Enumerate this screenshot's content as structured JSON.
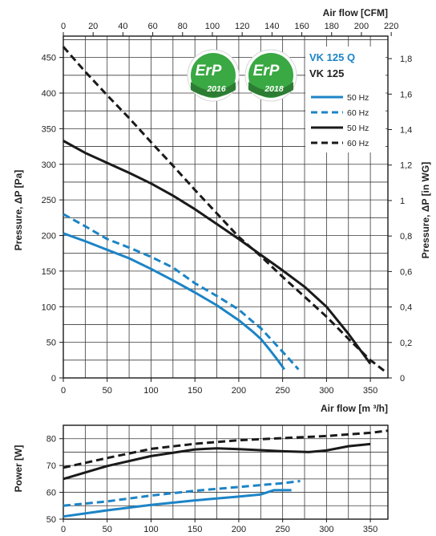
{
  "chart_data": [
    {
      "type": "line",
      "title": "",
      "xlabel": "Air flow [m ³/h]",
      "ylabel": "Pressure, ΔP [Pa]",
      "top_axis_label": "Air flow [CFM]",
      "right_axis_label": "Pressure, ΔP [in WG]",
      "xlim": [
        0,
        370
      ],
      "ylim": [
        0,
        480
      ],
      "x_ticks": [
        0,
        50,
        100,
        150,
        200,
        250,
        300,
        350
      ],
      "y_ticks": [
        0,
        50,
        100,
        150,
        200,
        250,
        300,
        350,
        400,
        450
      ],
      "top_x_ticks": [
        0,
        20,
        40,
        60,
        80,
        100,
        120,
        140,
        160,
        180,
        200,
        220
      ],
      "right_y_ticks": [
        "0",
        "0,2",
        "0,4",
        "0,6",
        "0,8",
        "1",
        "1,2",
        "1,4",
        "1,6",
        "1,8"
      ],
      "grid": true,
      "legend_position": "top-right",
      "legend": {
        "groups": [
          {
            "title": "VK 125 Q",
            "color": "#1c84c6",
            "entries": [
              {
                "label": "50 Hz",
                "dash": "solid"
              },
              {
                "label": "60 Hz",
                "dash": "dashed"
              }
            ]
          },
          {
            "title": "VK 125",
            "color": "#1a1a1a",
            "entries": [
              {
                "label": "50 Hz",
                "dash": "solid"
              },
              {
                "label": "60 Hz",
                "dash": "dashed"
              }
            ]
          }
        ]
      },
      "badges": [
        {
          "text": "ErP",
          "year": "2016"
        },
        {
          "text": "ErP",
          "year": "2018"
        }
      ],
      "series": [
        {
          "name": "VK 125 Q 50 Hz",
          "color": "#1c84c6",
          "dash": "solid",
          "x": [
            0,
            25,
            50,
            75,
            100,
            125,
            150,
            175,
            200,
            215,
            225,
            235,
            245,
            252
          ],
          "y": [
            203,
            192,
            180,
            168,
            153,
            137,
            120,
            102,
            81,
            66,
            55,
            40,
            24,
            12
          ]
        },
        {
          "name": "VK 125 Q 60 Hz",
          "color": "#1c84c6",
          "dash": "dashed",
          "x": [
            0,
            25,
            50,
            75,
            100,
            125,
            150,
            175,
            200,
            215,
            225,
            240,
            255,
            268
          ],
          "y": [
            230,
            213,
            195,
            183,
            170,
            155,
            133,
            115,
            96,
            80,
            70,
            50,
            30,
            12
          ]
        },
        {
          "name": "VK 125 50 Hz",
          "color": "#1a1a1a",
          "dash": "solid",
          "x": [
            0,
            25,
            50,
            75,
            100,
            125,
            150,
            175,
            200,
            225,
            250,
            275,
            300,
            325,
            350
          ],
          "y": [
            333,
            316,
            302,
            288,
            273,
            256,
            237,
            216,
            195,
            173,
            151,
            128,
            100,
            62,
            20
          ]
        },
        {
          "name": "VK 125 60 Hz",
          "color": "#1a1a1a",
          "dash": "dashed",
          "x": [
            0,
            25,
            50,
            75,
            100,
            125,
            150,
            175,
            200,
            225,
            250,
            275,
            300,
            325,
            350,
            368
          ],
          "y": [
            465,
            430,
            397,
            365,
            331,
            298,
            264,
            231,
            198,
            171,
            142,
            114,
            86,
            55,
            25,
            8
          ]
        }
      ]
    },
    {
      "type": "line",
      "title": "",
      "xlabel": "",
      "ylabel": "Power [W]",
      "xlim": [
        0,
        370
      ],
      "ylim": [
        50,
        85
      ],
      "x_ticks": [
        0,
        50,
        100,
        150,
        200,
        250,
        300,
        350
      ],
      "y_ticks": [
        50,
        60,
        70,
        80
      ],
      "grid": true,
      "series": [
        {
          "name": "VK 125 Q 50 Hz",
          "color": "#1c84c6",
          "dash": "solid",
          "x": [
            0,
            50,
            100,
            150,
            200,
            225,
            240,
            260
          ],
          "y": [
            51,
            53.3,
            55.3,
            57,
            58.4,
            59.2,
            60.8,
            60.8
          ]
        },
        {
          "name": "VK 125 Q 60 Hz",
          "color": "#1c84c6",
          "dash": "dashed",
          "x": [
            0,
            50,
            100,
            150,
            200,
            250,
            270
          ],
          "y": [
            55,
            56.6,
            58.8,
            60.6,
            62,
            63.4,
            64.2
          ]
        },
        {
          "name": "VK 125 50 Hz",
          "color": "#1a1a1a",
          "dash": "solid",
          "x": [
            0,
            50,
            100,
            150,
            175,
            200,
            250,
            280,
            300,
            325,
            350
          ],
          "y": [
            65,
            69.8,
            73.5,
            76,
            76.4,
            76.1,
            75.3,
            75,
            75.6,
            77.2,
            78
          ]
        },
        {
          "name": "VK 125 60 Hz",
          "color": "#1a1a1a",
          "dash": "dashed",
          "x": [
            0,
            50,
            100,
            150,
            200,
            250,
            300,
            350,
            370
          ],
          "y": [
            69.2,
            72.8,
            76.2,
            78.1,
            79.4,
            80.2,
            81,
            82.2,
            83
          ]
        }
      ]
    }
  ]
}
